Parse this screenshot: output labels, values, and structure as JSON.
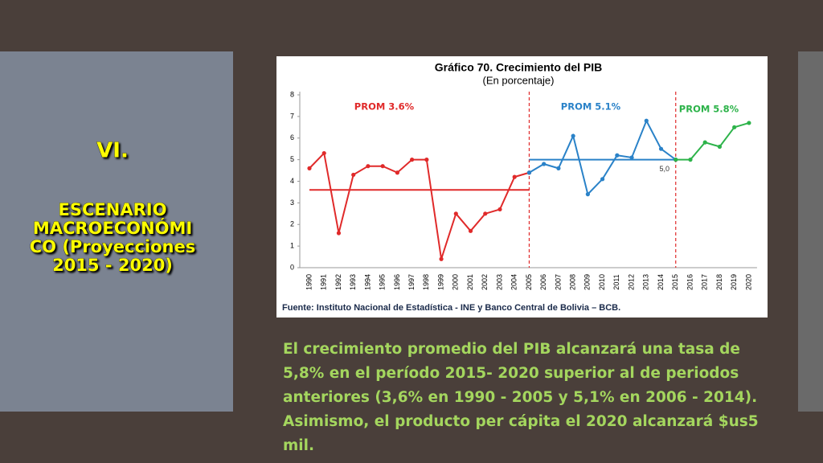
{
  "slide": {
    "heading_lines": [
      "VI.",
      "ESCENARIO",
      "MACROECONÓMI",
      "CO (Proyecciones",
      "2015 - 2020)"
    ],
    "paragraph_lines": [
      "El crecimiento promedio del PIB alcanzará una tasa de",
      "5,8% en el período 2015- 2020 superior al de periodos",
      "anteriores (3,6% en 1990 - 2005 y 5,1% en 2006 - 2014).",
      "Asimismo, el producto per cápita el 2020 alcanzará $us5",
      "mil."
    ]
  },
  "chart_data": {
    "type": "line",
    "title": "Gráfico 70. Crecimiento del PIB",
    "subtitle": "(En porcentaje)",
    "source": "Fuente: Instituto Nacional de Estadística - INE y Banco Central de Bolivia – BCB.",
    "categories": [
      "1990",
      "1991",
      "1992",
      "1993",
      "1994",
      "1995",
      "1996",
      "1997",
      "1998",
      "1999",
      "2000",
      "2001",
      "2002",
      "2003",
      "2004",
      "2005",
      "2006",
      "2007",
      "2008",
      "2009",
      "2010",
      "2011",
      "2012",
      "2013",
      "2014",
      "2015",
      "2016",
      "2017",
      "2018",
      "2019",
      "2020"
    ],
    "series": [
      {
        "color": "#e02a2a",
        "values": [
          4.6,
          5.3,
          1.6,
          4.3,
          4.7,
          4.7,
          4.4,
          5.0,
          5.0,
          0.4,
          2.5,
          1.7,
          2.5,
          2.7,
          4.2,
          4.4,
          null,
          null,
          null,
          null,
          null,
          null,
          null,
          null,
          null,
          null,
          null,
          null,
          null,
          null,
          null
        ]
      },
      {
        "color": "#2a82c8",
        "values": [
          null,
          null,
          null,
          null,
          null,
          null,
          null,
          null,
          null,
          null,
          null,
          null,
          null,
          null,
          null,
          4.4,
          4.8,
          4.6,
          6.1,
          3.4,
          4.1,
          5.2,
          5.1,
          6.8,
          5.5,
          5.0,
          null,
          null,
          null,
          null,
          null
        ]
      },
      {
        "color": "#2db34a",
        "values": [
          null,
          null,
          null,
          null,
          null,
          null,
          null,
          null,
          null,
          null,
          null,
          null,
          null,
          null,
          null,
          null,
          null,
          null,
          null,
          null,
          null,
          null,
          null,
          null,
          null,
          5.0,
          5.0,
          5.8,
          5.6,
          6.5,
          6.7
        ]
      }
    ],
    "averages": [
      {
        "value": 3.6,
        "start": "1990",
        "end": "2005",
        "color": "#e02a2a"
      },
      {
        "value": 5.0,
        "label": "5,0",
        "start": "2005",
        "end": "2015",
        "color": "#2a82c8"
      }
    ],
    "dividers": [
      "2005",
      "2015"
    ],
    "annotations": [
      {
        "text": "PROM 3.6%",
        "color": "#e02a2a"
      },
      {
        "text": "PROM 5.1%",
        "color": "#2a82c8"
      },
      {
        "text": "PROM 5.8%",
        "color": "#2db34a"
      }
    ],
    "ylim": [
      0,
      8
    ],
    "yticks": [
      0,
      1,
      2,
      3,
      4,
      5,
      6,
      7,
      8
    ],
    "grid": false
  }
}
